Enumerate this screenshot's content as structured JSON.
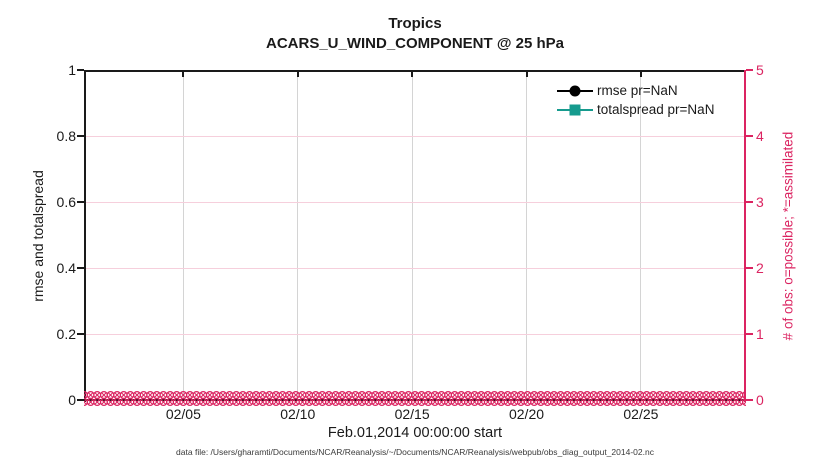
{
  "header": {
    "title_line1": "Tropics",
    "title_line2": "ACARS_U_WIND_COMPONENT @ 25 hPa"
  },
  "axes": {
    "xlabel": "Feb.01,2014 00:00:00 start",
    "ylabel_left": "rmse and totalspread",
    "ylabel_right": "# of obs: o=possible; *=assimilated",
    "x_tick_labels": [
      "02/05",
      "02/10",
      "02/15",
      "02/20",
      "02/25"
    ],
    "y_ticks_left": [
      "0",
      "0.2",
      "0.4",
      "0.6",
      "0.8",
      "1"
    ],
    "y_ticks_right": [
      "0",
      "1",
      "2",
      "3",
      "4",
      "5"
    ]
  },
  "legend": {
    "items": [
      {
        "label": "rmse pr=NaN",
        "color": "#000000",
        "marker": "circle"
      },
      {
        "label": "totalspread pr=NaN",
        "color": "#169B8E",
        "marker": "square"
      }
    ]
  },
  "footer": {
    "text": "data file: /Users/gharamti/Documents/NCAR/Reanalysis/~/Documents/NCAR/Reanalysis/webpub/obs_diag_output_2014-02.nc"
  },
  "colors": {
    "axis_black": "#1a1a1a",
    "right_axis_pink": "#DB2461",
    "grid_gray": "#d4d4d4",
    "grid_pink": "#f6cfdc",
    "teal": "#169B8E"
  },
  "chart_data": {
    "type": "line",
    "title": "Tropics",
    "subtitle": "ACARS_U_WIND_COMPONENT @ 25 hPa",
    "xlabel": "Feb.01,2014 00:00:00 start",
    "x_axis": {
      "kind": "time",
      "start": "Feb 01 2014 00:00:00",
      "tick_labels": [
        "02/05",
        "02/10",
        "02/15",
        "02/20",
        "02/25"
      ],
      "tick_days_from_start": [
        4,
        9,
        14,
        19,
        24
      ],
      "range_days_from_start": [
        -0.3,
        28.55
      ]
    },
    "y_axis_left": {
      "label": "rmse and totalspread",
      "range": [
        0,
        1
      ],
      "ticks": [
        0,
        0.2,
        0.4,
        0.6,
        0.8,
        1
      ],
      "color": "#1a1a1a"
    },
    "y_axis_right": {
      "label": "# of obs: o=possible; *=assimilated",
      "range": [
        0,
        5
      ],
      "ticks": [
        0,
        1,
        2,
        3,
        4,
        5
      ],
      "color": "#DB2461"
    },
    "grid": true,
    "legend_position": "top-right inside plot, no box",
    "series": [
      {
        "name": "rmse pr=NaN",
        "axis": "left",
        "color": "#000000",
        "marker": "filled-circle",
        "values": "all NaN - no curve drawn"
      },
      {
        "name": "totalspread pr=NaN",
        "axis": "left",
        "color": "#169B8E",
        "marker": "filled-square",
        "values": "all NaN - no curve drawn"
      },
      {
        "name": "# of obs possible (o)",
        "axis": "right",
        "color": "#DB2461",
        "marker": "o",
        "value_constant": 0,
        "note": "dense 6-hourly markers along y=0 across the whole month, forming a solid pink band"
      },
      {
        "name": "# of obs assimilated (*)",
        "axis": "right",
        "color": "#DB2461",
        "marker": "*",
        "value_constant": 0,
        "note": "overlaps the possible markers at y=0"
      }
    ]
  }
}
